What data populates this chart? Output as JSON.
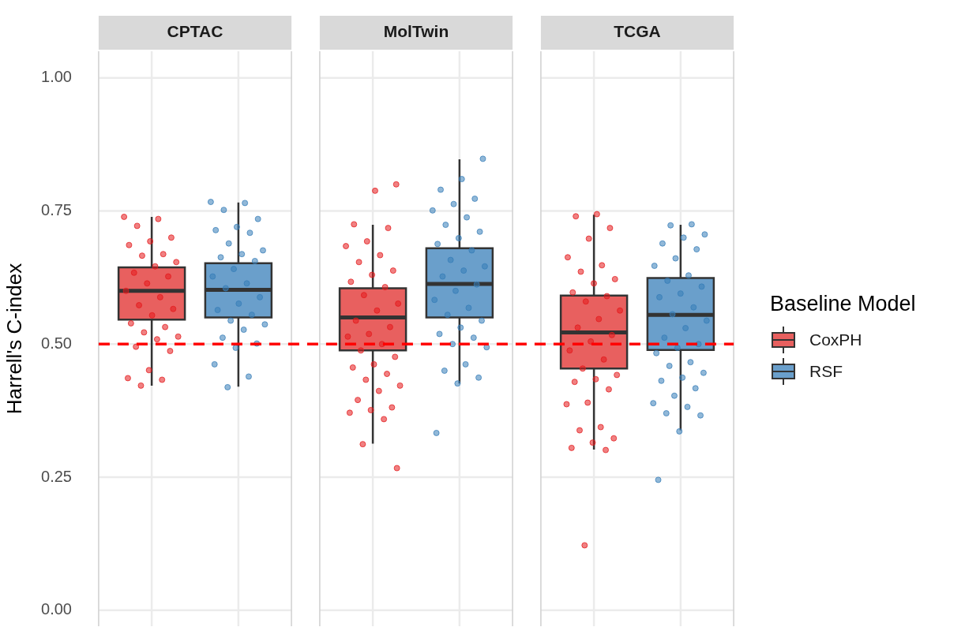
{
  "chart_data": {
    "type": "box",
    "ylabel": "Harrell's C-index",
    "categories": [
      "CPTAC",
      "MolTwin",
      "TCGA"
    ],
    "series": [
      {
        "name": "CoxPH",
        "color": "#e8605f",
        "boxes": [
          {
            "low": 0.422,
            "q1": 0.546,
            "median": 0.6,
            "q3": 0.644,
            "high": 0.739
          },
          {
            "low": 0.313,
            "q1": 0.488,
            "median": 0.55,
            "q3": 0.605,
            "high": 0.724
          },
          {
            "low": 0.302,
            "q1": 0.454,
            "median": 0.522,
            "q3": 0.591,
            "high": 0.743
          }
        ]
      },
      {
        "name": "RSF",
        "color": "#6a9fcb",
        "boxes": [
          {
            "low": 0.42,
            "q1": 0.55,
            "median": 0.602,
            "q3": 0.652,
            "high": 0.766
          },
          {
            "low": 0.426,
            "q1": 0.55,
            "median": 0.613,
            "q3": 0.68,
            "high": 0.847
          },
          {
            "low": 0.338,
            "q1": 0.489,
            "median": 0.555,
            "q3": 0.624,
            "high": 0.724
          }
        ]
      },
      {
        "type": "scatter",
        "color": "#e41a1c",
        "x": [
          "CPTAC",
          "CPTAC",
          "CPTAC",
          "CPTAC",
          "CPTAC",
          "CPTAC",
          "CPTAC",
          "CPTAC",
          "CPTAC",
          "CPTAC",
          "CPTAC",
          "CPTAC",
          "CPTAC",
          "CPTAC",
          "CPTAC",
          "CPTAC",
          "CPTAC",
          "CPTAC",
          "CPTAC",
          "CPTAC",
          "CPTAC",
          "CPTAC",
          "CPTAC",
          "CPTAC",
          "CPTAC",
          "CPTAC",
          "CPTAC",
          "CPTAC",
          "CPTAC",
          "MolTwin",
          "MolTwin",
          "MolTwin",
          "MolTwin",
          "MolTwin",
          "MolTwin",
          "MolTwin",
          "MolTwin",
          "MolTwin",
          "MolTwin",
          "MolTwin",
          "MolTwin",
          "MolTwin",
          "MolTwin",
          "MolTwin",
          "MolTwin",
          "MolTwin",
          "MolTwin",
          "MolTwin",
          "MolTwin",
          "MolTwin",
          "MolTwin",
          "MolTwin",
          "MolTwin",
          "MolTwin",
          "MolTwin",
          "MolTwin",
          "MolTwin",
          "MolTwin",
          "MolTwin",
          "MolTwin",
          "MolTwin",
          "MolTwin",
          "MolTwin",
          "MolTwin",
          "TCGA",
          "TCGA",
          "TCGA",
          "TCGA",
          "TCGA",
          "TCGA",
          "TCGA",
          "TCGA",
          "TCGA",
          "TCGA",
          "TCGA",
          "TCGA",
          "TCGA",
          "TCGA",
          "TCGA",
          "TCGA",
          "TCGA",
          "TCGA",
          "TCGA",
          "TCGA",
          "TCGA",
          "TCGA",
          "TCGA",
          "TCGA",
          "TCGA",
          "TCGA",
          "TCGA",
          "TCGA",
          "TCGA",
          "TCGA",
          "TCGA",
          "TCGA",
          "TCGA"
        ],
        "values": [
          0.739,
          0.735,
          0.722,
          0.7,
          0.693,
          0.686,
          0.669,
          0.666,
          0.654,
          0.646,
          0.634,
          0.627,
          0.614,
          0.6,
          0.588,
          0.573,
          0.566,
          0.554,
          0.539,
          0.532,
          0.522,
          0.514,
          0.509,
          0.495,
          0.487,
          0.451,
          0.436,
          0.433,
          0.422,
          0.8,
          0.788,
          0.725,
          0.718,
          0.693,
          0.684,
          0.667,
          0.654,
          0.638,
          0.63,
          0.617,
          0.607,
          0.592,
          0.576,
          0.563,
          0.544,
          0.532,
          0.519,
          0.514,
          0.5,
          0.488,
          0.476,
          0.462,
          0.456,
          0.444,
          0.433,
          0.422,
          0.412,
          0.395,
          0.381,
          0.376,
          0.371,
          0.359,
          0.312,
          0.267,
          0.744,
          0.74,
          0.718,
          0.698,
          0.663,
          0.648,
          0.636,
          0.622,
          0.614,
          0.597,
          0.59,
          0.58,
          0.563,
          0.547,
          0.531,
          0.517,
          0.505,
          0.488,
          0.471,
          0.454,
          0.442,
          0.434,
          0.429,
          0.415,
          0.39,
          0.387,
          0.344,
          0.338,
          0.323,
          0.315,
          0.305,
          0.301,
          0.122
        ]
      },
      {
        "type": "scatter",
        "color": "#377eb8",
        "x": [
          "CPTAC",
          "CPTAC",
          "CPTAC",
          "CPTAC",
          "CPTAC",
          "CPTAC",
          "CPTAC",
          "CPTAC",
          "CPTAC",
          "CPTAC",
          "CPTAC",
          "CPTAC",
          "CPTAC",
          "CPTAC",
          "CPTAC",
          "CPTAC",
          "CPTAC",
          "CPTAC",
          "CPTAC",
          "CPTAC",
          "CPTAC",
          "CPTAC",
          "CPTAC",
          "CPTAC",
          "CPTAC",
          "CPTAC",
          "CPTAC",
          "CPTAC",
          "CPTAC",
          "MolTwin",
          "MolTwin",
          "MolTwin",
          "MolTwin",
          "MolTwin",
          "MolTwin",
          "MolTwin",
          "MolTwin",
          "MolTwin",
          "MolTwin",
          "MolTwin",
          "MolTwin",
          "MolTwin",
          "MolTwin",
          "MolTwin",
          "MolTwin",
          "MolTwin",
          "MolTwin",
          "MolTwin",
          "MolTwin",
          "MolTwin",
          "MolTwin",
          "MolTwin",
          "MolTwin",
          "MolTwin",
          "MolTwin",
          "MolTwin",
          "MolTwin",
          "MolTwin",
          "MolTwin",
          "MolTwin",
          "MolTwin",
          "TCGA",
          "TCGA",
          "TCGA",
          "TCGA",
          "TCGA",
          "TCGA",
          "TCGA",
          "TCGA",
          "TCGA",
          "TCGA",
          "TCGA",
          "TCGA",
          "TCGA",
          "TCGA",
          "TCGA",
          "TCGA",
          "TCGA",
          "TCGA",
          "TCGA",
          "TCGA",
          "TCGA",
          "TCGA",
          "TCGA",
          "TCGA",
          "TCGA",
          "TCGA",
          "TCGA",
          "TCGA",
          "TCGA",
          "TCGA",
          "TCGA",
          "TCGA",
          "TCGA",
          "TCGA"
        ],
        "values": [
          0.767,
          0.765,
          0.752,
          0.735,
          0.72,
          0.714,
          0.709,
          0.689,
          0.676,
          0.669,
          0.663,
          0.656,
          0.641,
          0.627,
          0.614,
          0.605,
          0.588,
          0.576,
          0.564,
          0.555,
          0.544,
          0.537,
          0.527,
          0.512,
          0.501,
          0.493,
          0.462,
          0.439,
          0.419,
          0.848,
          0.81,
          0.79,
          0.773,
          0.763,
          0.751,
          0.738,
          0.724,
          0.711,
          0.699,
          0.688,
          0.676,
          0.658,
          0.646,
          0.638,
          0.627,
          0.612,
          0.6,
          0.583,
          0.568,
          0.555,
          0.544,
          0.531,
          0.519,
          0.512,
          0.5,
          0.494,
          0.462,
          0.45,
          0.437,
          0.426,
          0.333,
          0.725,
          0.723,
          0.706,
          0.7,
          0.689,
          0.678,
          0.661,
          0.647,
          0.629,
          0.619,
          0.608,
          0.595,
          0.588,
          0.569,
          0.556,
          0.544,
          0.53,
          0.512,
          0.5,
          0.493,
          0.483,
          0.466,
          0.459,
          0.446,
          0.437,
          0.431,
          0.417,
          0.403,
          0.389,
          0.382,
          0.37,
          0.366,
          0.336,
          0.245
        ]
      }
    ],
    "ylim": [
      -0.03,
      1.05
    ],
    "yticks": [
      {
        "value": 0,
        "label": "0.00"
      },
      {
        "value": 0.25,
        "label": "0.25"
      },
      {
        "value": 0.5,
        "label": "0.50"
      },
      {
        "value": 0.75,
        "label": "0.75"
      },
      {
        "value": 1,
        "label": "1.00"
      }
    ],
    "ref_lines": [
      {
        "axis": "y",
        "value": 0.5,
        "color": "#ff0000",
        "line_style": "dashed"
      }
    ],
    "grid": true,
    "legend": "right",
    "legend_title": "Baseline Model"
  }
}
